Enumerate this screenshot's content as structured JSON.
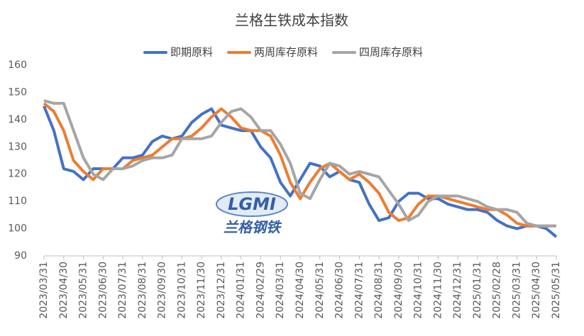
{
  "chart_data": {
    "type": "line",
    "title": "兰格生铁成本指数",
    "categories": [
      "2023/03/31",
      null,
      "2023/04/30",
      null,
      "2023/05/31",
      null,
      "2023/06/30",
      null,
      "2023/07/31",
      null,
      "2023/08/31",
      null,
      "2023/09/30",
      null,
      "2023/10/31",
      null,
      "2023/11/30",
      null,
      "2023/12/31",
      null,
      "2024/01/31",
      null,
      "2024/02/29",
      null,
      "2024/03/31",
      null,
      "2024/04/30",
      null,
      "2024/05/31",
      null,
      "2024/06/30",
      null,
      "2024/07/31",
      null,
      "2024/08/31",
      null,
      "2024/09/30",
      null,
      "2024/10/31",
      null,
      "2024/11/30",
      null,
      "2024/12/31",
      null,
      "2025/01/31",
      null,
      "2025/02/28",
      null,
      "2025/03/31",
      null,
      "2025/04/30",
      null,
      "2025/05/31"
    ],
    "series": [
      {
        "name": "即期原料",
        "color": "#4472c4",
        "values": [
          145,
          136,
          122,
          121,
          118,
          122,
          122,
          122,
          126,
          126,
          127,
          132,
          134,
          133,
          134,
          139,
          142,
          144,
          138,
          137,
          136,
          136,
          130,
          126,
          117,
          112,
          118,
          124,
          123,
          119,
          121,
          118,
          117,
          109,
          103,
          104,
          110,
          113,
          113,
          111,
          111,
          109,
          108,
          107,
          107,
          106,
          103,
          101,
          100,
          101,
          101,
          100,
          97
        ]
      },
      {
        "name": "两周库存原料",
        "color": "#ed7d31",
        "values": [
          146,
          143,
          136,
          125,
          121,
          118,
          122,
          122,
          122,
          125,
          126,
          127,
          130,
          133,
          133,
          134,
          137,
          141,
          144,
          141,
          137,
          136,
          136,
          134,
          127,
          117,
          111,
          117,
          122,
          124,
          121,
          118,
          120,
          117,
          113,
          106,
          103,
          104,
          109,
          112,
          112,
          111,
          110,
          109,
          108,
          107,
          107,
          105,
          102,
          101,
          101,
          101,
          101
        ]
      },
      {
        "name": "四周库存原料",
        "color": "#a5a5a5",
        "values": [
          147,
          146,
          146,
          136,
          126,
          120,
          118,
          122,
          122,
          123,
          125,
          126,
          126,
          127,
          133,
          133,
          133,
          134,
          139,
          143,
          144,
          141,
          136,
          136,
          131,
          124,
          113,
          111,
          118,
          124,
          123,
          120,
          121,
          120,
          119,
          114,
          109,
          103,
          105,
          110,
          112,
          112,
          112,
          111,
          110,
          108,
          107,
          107,
          106,
          102,
          101,
          101,
          101
        ]
      }
    ],
    "ylim": [
      90,
      160
    ],
    "yticks": [
      90,
      100,
      110,
      120,
      130,
      140,
      150,
      160
    ],
    "grid": false,
    "legend": "top",
    "watermark": {
      "logo": "LGMI",
      "name": "兰格钢铁"
    }
  }
}
